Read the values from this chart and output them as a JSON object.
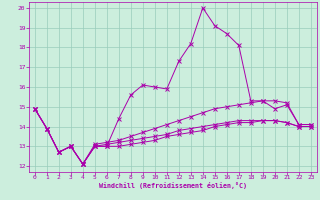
{
  "title": "",
  "xlabel": "Windchill (Refroidissement éolien,°C)",
  "ylabel": "",
  "bg_color": "#cceedd",
  "line_color": "#aa00aa",
  "grid_color": "#99ccbb",
  "xlim": [
    -0.5,
    23.5
  ],
  "ylim": [
    11.7,
    20.3
  ],
  "xticks": [
    0,
    1,
    2,
    3,
    4,
    5,
    6,
    7,
    8,
    9,
    10,
    11,
    12,
    13,
    14,
    15,
    16,
    17,
    18,
    19,
    20,
    21,
    22,
    23
  ],
  "yticks": [
    12,
    13,
    14,
    15,
    16,
    17,
    18,
    19,
    20
  ],
  "line1_x": [
    0,
    1,
    2,
    3,
    4,
    5,
    6,
    7,
    8,
    9,
    10,
    11,
    12,
    13,
    14,
    15,
    16,
    17,
    18,
    19,
    20,
    21,
    22,
    23
  ],
  "line1_y": [
    14.9,
    13.9,
    12.7,
    13.0,
    12.1,
    13.0,
    13.0,
    14.4,
    15.6,
    16.1,
    16.0,
    15.9,
    17.3,
    18.2,
    20.0,
    19.1,
    18.7,
    18.1,
    15.3,
    15.3,
    14.9,
    15.1,
    14.1,
    14.1
  ],
  "line2_x": [
    0,
    1,
    2,
    3,
    4,
    5,
    6,
    7,
    8,
    9,
    10,
    11,
    12,
    13,
    14,
    15,
    16,
    17,
    18,
    19,
    20,
    21,
    22,
    23
  ],
  "line2_y": [
    14.9,
    13.9,
    12.7,
    13.0,
    12.1,
    13.1,
    13.2,
    13.3,
    13.5,
    13.7,
    13.9,
    14.1,
    14.3,
    14.5,
    14.7,
    14.9,
    15.0,
    15.1,
    15.2,
    15.3,
    15.3,
    15.2,
    14.1,
    14.1
  ],
  "line3_x": [
    0,
    1,
    2,
    3,
    4,
    5,
    6,
    7,
    8,
    9,
    10,
    11,
    12,
    13,
    14,
    15,
    16,
    17,
    18,
    19,
    20,
    21,
    22,
    23
  ],
  "line3_y": [
    14.9,
    13.9,
    12.7,
    13.0,
    12.1,
    13.0,
    13.0,
    13.0,
    13.1,
    13.2,
    13.3,
    13.5,
    13.6,
    13.7,
    13.8,
    14.0,
    14.1,
    14.2,
    14.2,
    14.3,
    14.3,
    14.2,
    14.0,
    14.0
  ],
  "line4_x": [
    0,
    1,
    2,
    3,
    4,
    5,
    6,
    7,
    8,
    9,
    10,
    11,
    12,
    13,
    14,
    15,
    16,
    17,
    18,
    19,
    20,
    21,
    22,
    23
  ],
  "line4_y": [
    14.9,
    13.9,
    12.7,
    13.0,
    12.1,
    13.0,
    13.1,
    13.2,
    13.3,
    13.4,
    13.5,
    13.6,
    13.8,
    13.9,
    14.0,
    14.1,
    14.2,
    14.3,
    14.3,
    14.3,
    14.3,
    14.2,
    14.0,
    14.0
  ]
}
